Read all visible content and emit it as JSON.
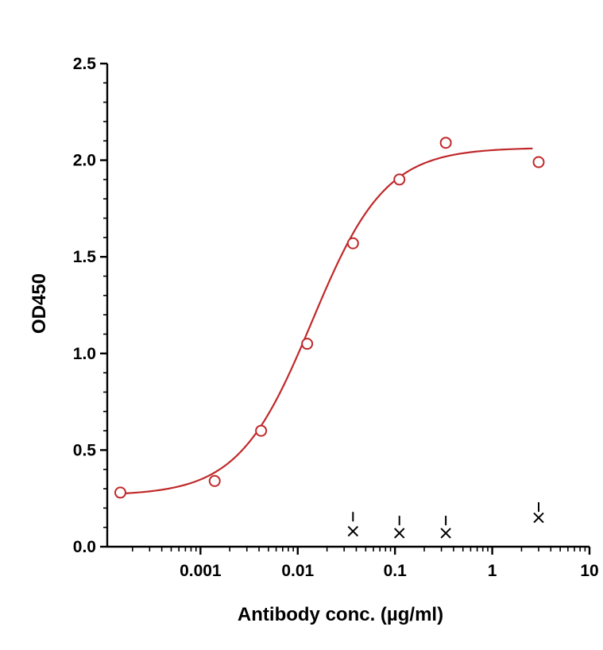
{
  "chart_data": {
    "type": "scatter",
    "title": "",
    "xlabel": "Antibody conc. (µg/ml)",
    "ylabel": "OD450",
    "x_scale": "log",
    "xlim": [
      0.00011,
      10
    ],
    "ylim": [
      0,
      2.5
    ],
    "x_ticks": [
      {
        "value": 0.001,
        "label": "0.001"
      },
      {
        "value": 0.01,
        "label": "0.01"
      },
      {
        "value": 0.1,
        "label": "0.1"
      },
      {
        "value": 1,
        "label": "1"
      },
      {
        "value": 10,
        "label": "10"
      }
    ],
    "y_ticks": [
      {
        "value": 0,
        "label": "0.0"
      },
      {
        "value": 0.5,
        "label": "0.5"
      },
      {
        "value": 1,
        "label": "1.0"
      },
      {
        "value": 1.5,
        "label": "1.5"
      },
      {
        "value": 2,
        "label": "2.0"
      },
      {
        "value": 2.5,
        "label": "2.5"
      }
    ],
    "grid": false,
    "legend": "none",
    "series": [
      {
        "marker": "circle",
        "color": "#c0282a",
        "points": [
          {
            "x": 0.00015,
            "y": 0.28
          },
          {
            "x": 0.0014,
            "y": 0.34
          },
          {
            "x": 0.0042,
            "y": 0.6
          },
          {
            "x": 0.0125,
            "y": 1.05
          },
          {
            "x": 0.037,
            "y": 1.57
          },
          {
            "x": 0.111,
            "y": 1.9
          },
          {
            "x": 0.333,
            "y": 2.09
          },
          {
            "x": 3.0,
            "y": 1.99
          }
        ],
        "fit": {
          "model": "4PL",
          "bottom": 0.265,
          "top": 2.065,
          "ec50": 0.014,
          "hill": 1.15,
          "x_range": [
            0.00015,
            2.6
          ]
        }
      },
      {
        "marker": "x",
        "color": "#000000",
        "points": [
          {
            "x": 0.037,
            "y": 0.08,
            "err": 0.1
          },
          {
            "x": 0.111,
            "y": 0.07,
            "err": 0.09
          },
          {
            "x": 0.333,
            "y": 0.07,
            "err": 0.09
          },
          {
            "x": 3.0,
            "y": 0.15,
            "err": 0.08
          }
        ]
      }
    ]
  }
}
